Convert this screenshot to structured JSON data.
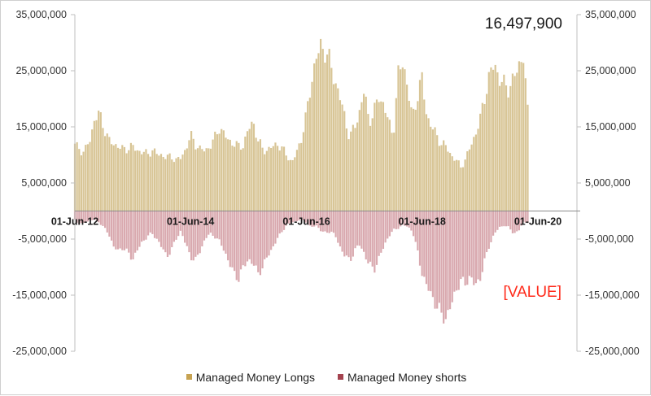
{
  "chart_data": {
    "type": "bar",
    "title": "",
    "xlabel": "",
    "ylabel": "",
    "ylim": [
      -25000000,
      35000000
    ],
    "yticks": [
      35000000,
      25000000,
      15000000,
      5000000,
      -5000000,
      -15000000,
      -25000000
    ],
    "ytick_labels": [
      "35,000,000",
      "25,000,000",
      "15,000,000",
      "5,000,000",
      "-5,000,000",
      "-15,000,000",
      "-25,000,000"
    ],
    "xlim": [
      "2012-06-01",
      "2020-06-01"
    ],
    "xticks": [
      "2012-06-01",
      "2014-06-01",
      "2016-06-01",
      "2018-06-01",
      "2020-06-01"
    ],
    "xtick_labels": [
      "01-Jun-12",
      "01-Jun-14",
      "01-Jun-16",
      "01-Jun-18",
      "01-Jun-20"
    ],
    "series": [
      {
        "name": "Managed Money Longs",
        "color": "#d8c596",
        "dates": [
          "2012-06-01",
          "2012-07-01",
          "2012-08-01",
          "2012-09-01",
          "2012-10-01",
          "2012-11-01",
          "2012-12-01",
          "2013-01-01",
          "2013-02-01",
          "2013-03-01",
          "2013-04-01",
          "2013-05-01",
          "2013-06-01",
          "2013-07-01",
          "2013-08-01",
          "2013-09-01",
          "2013-10-01",
          "2013-11-01",
          "2013-12-01",
          "2014-01-01",
          "2014-02-01",
          "2014-03-01",
          "2014-04-01",
          "2014-05-01",
          "2014-06-01",
          "2014-07-01",
          "2014-08-01",
          "2014-09-01",
          "2014-10-01",
          "2014-11-01",
          "2014-12-01",
          "2015-01-01",
          "2015-02-01",
          "2015-03-01",
          "2015-04-01",
          "2015-05-01",
          "2015-06-01",
          "2015-07-01",
          "2015-08-01",
          "2015-09-01",
          "2015-10-01",
          "2015-11-01",
          "2015-12-01",
          "2016-01-01",
          "2016-02-01",
          "2016-03-01",
          "2016-04-01",
          "2016-05-01",
          "2016-06-01",
          "2016-07-01",
          "2016-08-01",
          "2016-09-01",
          "2016-10-01",
          "2016-11-01",
          "2016-12-01",
          "2017-01-01",
          "2017-02-01",
          "2017-03-01",
          "2017-04-01",
          "2017-05-01",
          "2017-06-01",
          "2017-07-01",
          "2017-08-01",
          "2017-09-01",
          "2017-10-01",
          "2017-11-01",
          "2017-12-01",
          "2018-01-01",
          "2018-02-01",
          "2018-03-01",
          "2018-04-01",
          "2018-05-01",
          "2018-06-01",
          "2018-07-01",
          "2018-08-01",
          "2018-09-01",
          "2018-10-01",
          "2018-11-01",
          "2018-12-01",
          "2019-01-01",
          "2019-02-01",
          "2019-03-01",
          "2019-04-01",
          "2019-05-01",
          "2019-06-01",
          "2019-07-01",
          "2019-08-01",
          "2019-09-01",
          "2019-10-01",
          "2019-11-01",
          "2019-12-01",
          "2020-01-01",
          "2020-02-01",
          "2020-03-01",
          "2020-04-01"
        ],
        "values": [
          12000000,
          11000000,
          10500000,
          12500000,
          16000000,
          17500000,
          15000000,
          12500000,
          12000000,
          11500000,
          11000000,
          11200000,
          11500000,
          10800000,
          10500000,
          10200000,
          10800000,
          10200000,
          10000000,
          9500000,
          9800000,
          9000000,
          9500000,
          11000000,
          13500000,
          12000000,
          11000000,
          10800000,
          11500000,
          13000000,
          15000000,
          13500000,
          12500000,
          12000000,
          11500000,
          11800000,
          14500000,
          16000000,
          12500000,
          11000000,
          10800000,
          11500000,
          12000000,
          11000000,
          10000000,
          8500000,
          10500000,
          13000000,
          17000000,
          23000000,
          27000000,
          29500000,
          28500000,
          26000000,
          23000000,
          20000000,
          16500000,
          13000000,
          15000000,
          17500000,
          21500000,
          16000000,
          17500000,
          20500000,
          19000000,
          16000000,
          13500000,
          24000000,
          27000000,
          22000000,
          16500000,
          20500000,
          23500000,
          17000000,
          15000000,
          13500000,
          12000000,
          11500000,
          10000000,
          9000000,
          8000000,
          9000000,
          11500000,
          13500000,
          16000000,
          20500000,
          24000000,
          26500000,
          23500000,
          22500000,
          22000000,
          23500000,
          26000000,
          28000000,
          16497900
        ],
        "latest_value_label": "16,497,900"
      },
      {
        "name": "Managed Money shorts",
        "color": "#d9a9af",
        "dates": [
          "2012-06-01",
          "2012-07-01",
          "2012-08-01",
          "2012-09-01",
          "2012-10-01",
          "2012-11-01",
          "2012-12-01",
          "2013-01-01",
          "2013-02-01",
          "2013-03-01",
          "2013-04-01",
          "2013-05-01",
          "2013-06-01",
          "2013-07-01",
          "2013-08-01",
          "2013-09-01",
          "2013-10-01",
          "2013-11-01",
          "2013-12-01",
          "2014-01-01",
          "2014-02-01",
          "2014-03-01",
          "2014-04-01",
          "2014-05-01",
          "2014-06-01",
          "2014-07-01",
          "2014-08-01",
          "2014-09-01",
          "2014-10-01",
          "2014-11-01",
          "2014-12-01",
          "2015-01-01",
          "2015-02-01",
          "2015-03-01",
          "2015-04-01",
          "2015-05-01",
          "2015-06-01",
          "2015-07-01",
          "2015-08-01",
          "2015-09-01",
          "2015-10-01",
          "2015-11-01",
          "2015-12-01",
          "2016-01-01",
          "2016-02-01",
          "2016-03-01",
          "2016-04-01",
          "2016-05-01",
          "2016-06-01",
          "2016-07-01",
          "2016-08-01",
          "2016-09-01",
          "2016-10-01",
          "2016-11-01",
          "2016-12-01",
          "2017-01-01",
          "2017-02-01",
          "2017-03-01",
          "2017-04-01",
          "2017-05-01",
          "2017-06-01",
          "2017-07-01",
          "2017-08-01",
          "2017-09-01",
          "2017-10-01",
          "2017-11-01",
          "2017-12-01",
          "2018-01-01",
          "2018-02-01",
          "2018-03-01",
          "2018-04-01",
          "2018-05-01",
          "2018-06-01",
          "2018-07-01",
          "2018-08-01",
          "2018-09-01",
          "2018-10-01",
          "2018-11-01",
          "2018-12-01",
          "2019-01-01",
          "2019-02-01",
          "2019-03-01",
          "2019-04-01",
          "2019-05-01",
          "2019-06-01",
          "2019-07-01",
          "2019-08-01",
          "2019-09-01",
          "2019-10-01",
          "2019-11-01",
          "2019-12-01",
          "2020-01-01",
          "2020-02-01",
          "2020-03-01",
          "2020-04-01"
        ],
        "values": [
          -1500000,
          -2500000,
          -2000000,
          -1800000,
          -1500000,
          -2000000,
          -3000000,
          -4000000,
          -6500000,
          -7000000,
          -6500000,
          -7500000,
          -8500000,
          -7000000,
          -5500000,
          -4500000,
          -4000000,
          -5000000,
          -6500000,
          -8000000,
          -7000000,
          -5000000,
          -3500000,
          -6000000,
          -8000000,
          -9000000,
          -7000000,
          -5000000,
          -4000000,
          -4500000,
          -5500000,
          -7000000,
          -9500000,
          -11000000,
          -12000000,
          -10000000,
          -8500000,
          -9500000,
          -11000000,
          -10000000,
          -8000000,
          -6500000,
          -5000000,
          -3500000,
          -2500000,
          -2000000,
          -1800000,
          -1500000,
          -2000000,
          -3000000,
          -2500000,
          -3500000,
          -4000000,
          -3500000,
          -4500000,
          -6500000,
          -8000000,
          -9000000,
          -7000000,
          -6000000,
          -7500000,
          -9500000,
          -10500000,
          -8500000,
          -6500000,
          -4500000,
          -3500000,
          -3000000,
          -2500000,
          -2800000,
          -3500000,
          -7000000,
          -11000000,
          -13500000,
          -15000000,
          -17000000,
          -18500000,
          -19000000,
          -17000000,
          -14000000,
          -12500000,
          -13000000,
          -11500000,
          -13500000,
          -12000000,
          -9000000,
          -6000000,
          -4000000,
          -3000000,
          -2500000,
          -3000000,
          -4000000,
          -3500000,
          -2000000,
          -2000000
        ]
      }
    ],
    "annotations": {
      "latest_value": "16,497,900",
      "placeholder": "[VALUE]"
    },
    "grid": false,
    "legend_position": "bottom-center"
  },
  "colors": {
    "longs": "#d8c596",
    "shorts": "#d9a9af",
    "legend_longs": "#c7a352",
    "legend_shorts": "#a4434f",
    "placeholder": "#ff2a1a",
    "axis": "#bfbfbf"
  }
}
